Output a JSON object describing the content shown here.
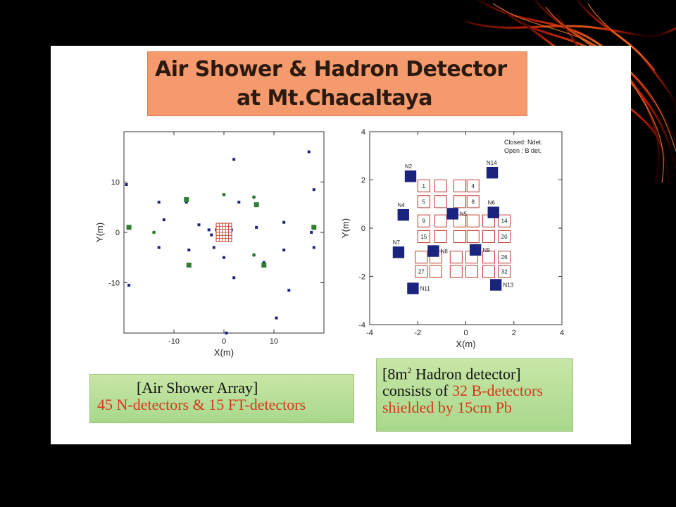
{
  "title": {
    "line1": "Air Shower & Hadron Detector",
    "line2": "at Mt.Chacaltaya"
  },
  "captions": {
    "left": {
      "line1": "[Air Shower Array]",
      "line2": "45 N-detectors & 15 FT-detectors"
    },
    "right": {
      "line1_a": "[8m",
      "line1_sup": "2",
      "line1_b": " Hadron detector]",
      "line2_a": "consists of ",
      "line2_b": "32 B-detectors",
      "line3": "shielded by 15cm Pb"
    }
  },
  "colors": {
    "n_detector": "#1a237e",
    "ft_detector": "#2e7d32",
    "b_detector_outline": "#c0392b",
    "title_bg": "#f59a6c",
    "caption_bg": "#b9e09a",
    "caption_red": "#d8361c"
  },
  "chart_data": [
    {
      "type": "scatter",
      "name_hint": "air-shower-array",
      "xlabel": "X(m)",
      "ylabel": "Y(m)",
      "xlim": [
        -20,
        20
      ],
      "ylim": [
        -20,
        20
      ],
      "xticks": [
        -10,
        0,
        10
      ],
      "yticks": [
        -10,
        0,
        10
      ],
      "x_tick_labels": [
        "-10",
        "0",
        "10"
      ],
      "y_tick_labels": [
        "-10",
        "0",
        "10"
      ],
      "series": [
        {
          "marker": "square-small",
          "color": "#1a237e",
          "points": [
            [
              2,
              14.5
            ],
            [
              17,
              16
            ],
            [
              -19.5,
              9.5
            ],
            [
              18,
              8.5
            ],
            [
              -13,
              6
            ],
            [
              -7.5,
              6
            ],
            [
              3,
              6
            ],
            [
              -12,
              2.5
            ],
            [
              12,
              2
            ],
            [
              -5,
              1.5
            ],
            [
              6.5,
              1
            ],
            [
              -3,
              0.5
            ],
            [
              17.5,
              0
            ],
            [
              -2.5,
              -0.5
            ],
            [
              -13,
              -3
            ],
            [
              -7,
              -3.5
            ],
            [
              -2,
              -3
            ],
            [
              12,
              -3.5
            ],
            [
              18,
              -3
            ],
            [
              0,
              -5
            ],
            [
              8,
              -6
            ],
            [
              2,
              -9
            ],
            [
              -19,
              -10.5
            ],
            [
              13,
              -11.5
            ],
            [
              10.5,
              -17
            ],
            [
              0.5,
              -20
            ],
            [
              -1.5,
              0.5
            ],
            [
              1.5,
              0.5
            ],
            [
              -0.5,
              -1.5
            ],
            [
              1,
              -1
            ],
            [
              0.5,
              1
            ]
          ]
        },
        {
          "marker": "square-large",
          "color": "#2e7d32",
          "points": [
            [
              -7.5,
              6.5
            ],
            [
              6.5,
              5.5
            ],
            [
              -19,
              1
            ],
            [
              18,
              1
            ],
            [
              -7,
              -6.5
            ],
            [
              8,
              -6.5
            ]
          ]
        },
        {
          "marker": "circle",
          "color": "#2e7d32",
          "points": [
            [
              0,
              7.5
            ],
            [
              6,
              7
            ],
            [
              -14,
              0
            ],
            [
              6,
              -4.5
            ]
          ]
        },
        {
          "marker": "grid",
          "color": "#c0392b",
          "points": [
            [
              0,
              0
            ]
          ]
        }
      ]
    },
    {
      "type": "scatter",
      "name_hint": "hadron-detector",
      "xlabel": "X(m)",
      "ylabel": "Y(m)",
      "xlim": [
        -4,
        4
      ],
      "ylim": [
        -4,
        4
      ],
      "xticks": [
        -4,
        -2,
        0,
        2,
        4
      ],
      "yticks": [
        -4,
        -2,
        0,
        2,
        4
      ],
      "x_tick_labels": [
        "-4",
        "-2",
        "0",
        "2",
        "4"
      ],
      "y_tick_labels": [
        "-4",
        "-2",
        "0",
        "2",
        "4"
      ],
      "legend": [
        "Closed: Ndet.",
        "Open : B det."
      ],
      "n_detectors": [
        {
          "label": "N2",
          "x": -2.3,
          "y": 2.15
        },
        {
          "label": "N14",
          "x": 1.1,
          "y": 2.3
        },
        {
          "label": "N4",
          "x": -2.6,
          "y": 0.55
        },
        {
          "label": "N5",
          "x": -0.55,
          "y": 0.6
        },
        {
          "label": "N6",
          "x": 1.15,
          "y": 0.65
        },
        {
          "label": "N7",
          "x": -2.8,
          "y": -1.0
        },
        {
          "label": "N8",
          "x": -1.35,
          "y": -0.95
        },
        {
          "label": "N9",
          "x": 0.4,
          "y": -0.9
        },
        {
          "label": "N11",
          "x": -2.2,
          "y": -2.5
        },
        {
          "label": "N13",
          "x": 1.25,
          "y": -2.35
        }
      ],
      "b_detectors": [
        {
          "label": "1",
          "x": -1.75,
          "y": 1.75
        },
        {
          "label": "",
          "x": -1.05,
          "y": 1.75
        },
        {
          "label": "",
          "x": -0.25,
          "y": 1.75
        },
        {
          "label": "4",
          "x": 0.3,
          "y": 1.75
        },
        {
          "label": "5",
          "x": -1.75,
          "y": 1.1
        },
        {
          "label": "",
          "x": -1.05,
          "y": 1.1
        },
        {
          "label": "",
          "x": -0.25,
          "y": 1.1
        },
        {
          "label": "8",
          "x": 0.3,
          "y": 1.1
        },
        {
          "label": "9",
          "x": -1.75,
          "y": 0.3
        },
        {
          "label": "",
          "x": -1.05,
          "y": 0.3
        },
        {
          "label": "",
          "x": -0.25,
          "y": 0.3
        },
        {
          "label": "",
          "x": 0.3,
          "y": 0.3
        },
        {
          "label": "",
          "x": 0.95,
          "y": 0.3
        },
        {
          "label": "14",
          "x": 1.6,
          "y": 0.3
        },
        {
          "label": "15",
          "x": -1.75,
          "y": -0.35
        },
        {
          "label": "",
          "x": -1.05,
          "y": -0.35
        },
        {
          "label": "",
          "x": -0.25,
          "y": -0.35
        },
        {
          "label": "",
          "x": 0.3,
          "y": -0.35
        },
        {
          "label": "",
          "x": 0.95,
          "y": -0.35
        },
        {
          "label": "20",
          "x": 1.6,
          "y": -0.35
        },
        {
          "label": "",
          "x": -1.85,
          "y": -1.2
        },
        {
          "label": "",
          "x": -1.25,
          "y": -1.2
        },
        {
          "label": "",
          "x": -0.4,
          "y": -1.2
        },
        {
          "label": "",
          "x": 0.25,
          "y": -1.2
        },
        {
          "label": "",
          "x": 0.95,
          "y": -1.2
        },
        {
          "label": "26",
          "x": 1.6,
          "y": -1.2
        },
        {
          "label": "27",
          "x": -1.85,
          "y": -1.8
        },
        {
          "label": "",
          "x": -1.25,
          "y": -1.8
        },
        {
          "label": "",
          "x": -0.4,
          "y": -1.8
        },
        {
          "label": "",
          "x": 0.25,
          "y": -1.8
        },
        {
          "label": "",
          "x": 0.95,
          "y": -1.8
        },
        {
          "label": "32",
          "x": 1.6,
          "y": -1.8
        }
      ]
    }
  ]
}
